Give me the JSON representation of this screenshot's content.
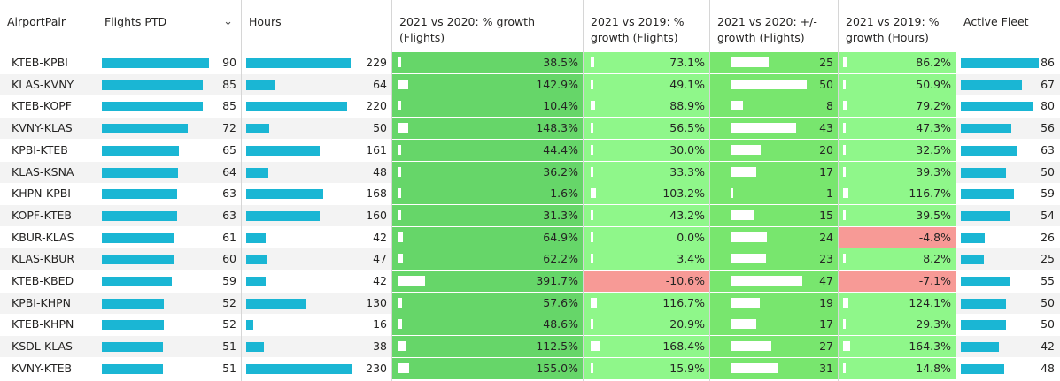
{
  "columns": [
    {
      "key": "pair",
      "label": "AirportPair"
    },
    {
      "key": "flights",
      "label": "Flights PTD",
      "sort_icon": "chevron-down-icon"
    },
    {
      "key": "hours",
      "label": "Hours"
    },
    {
      "key": "g2020f",
      "label": "2021 vs 2020: % growth (Flights)"
    },
    {
      "key": "g2019f",
      "label": "2021 vs 2019: % growth (Flights)"
    },
    {
      "key": "d2020f",
      "label": "2021 vs 2020: +/- growth (Flights)"
    },
    {
      "key": "g2019h",
      "label": "2021 vs 2019: % growth (Hours)"
    },
    {
      "key": "fleet",
      "label": "Active Fleet"
    }
  ],
  "colors": {
    "bar": "#1ab6d4",
    "green_dark": "#66d669",
    "green_light": "#8ff78a",
    "green_mid": "#78e66e",
    "red": "#f79a96"
  },
  "rows": [
    {
      "pair": "KTEB-KPBI",
      "flights": "90",
      "hours": "229",
      "g2020f": "38.5%",
      "g2019f": "73.1%",
      "d2020f": "25",
      "g2019h": "86.2%",
      "fleet": "86",
      "v": {
        "flights": 90,
        "hours": 229,
        "g2020f": 38.5,
        "g2019f": 73.1,
        "d2020f": 25,
        "g2019h": 86.2,
        "fleet": 86
      }
    },
    {
      "pair": "KLAS-KVNY",
      "flights": "85",
      "hours": "64",
      "g2020f": "142.9%",
      "g2019f": "49.1%",
      "d2020f": "50",
      "g2019h": "50.9%",
      "fleet": "67",
      "v": {
        "flights": 85,
        "hours": 64,
        "g2020f": 142.9,
        "g2019f": 49.1,
        "d2020f": 50,
        "g2019h": 50.9,
        "fleet": 67
      }
    },
    {
      "pair": "KTEB-KOPF",
      "flights": "85",
      "hours": "220",
      "g2020f": "10.4%",
      "g2019f": "88.9%",
      "d2020f": "8",
      "g2019h": "79.2%",
      "fleet": "80",
      "v": {
        "flights": 85,
        "hours": 220,
        "g2020f": 10.4,
        "g2019f": 88.9,
        "d2020f": 8,
        "g2019h": 79.2,
        "fleet": 80
      }
    },
    {
      "pair": "KVNY-KLAS",
      "flights": "72",
      "hours": "50",
      "g2020f": "148.3%",
      "g2019f": "56.5%",
      "d2020f": "43",
      "g2019h": "47.3%",
      "fleet": "56",
      "v": {
        "flights": 72,
        "hours": 50,
        "g2020f": 148.3,
        "g2019f": 56.5,
        "d2020f": 43,
        "g2019h": 47.3,
        "fleet": 56
      }
    },
    {
      "pair": "KPBI-KTEB",
      "flights": "65",
      "hours": "161",
      "g2020f": "44.4%",
      "g2019f": "30.0%",
      "d2020f": "20",
      "g2019h": "32.5%",
      "fleet": "63",
      "v": {
        "flights": 65,
        "hours": 161,
        "g2020f": 44.4,
        "g2019f": 30.0,
        "d2020f": 20,
        "g2019h": 32.5,
        "fleet": 63
      }
    },
    {
      "pair": "KLAS-KSNA",
      "flights": "64",
      "hours": "48",
      "g2020f": "36.2%",
      "g2019f": "33.3%",
      "d2020f": "17",
      "g2019h": "39.3%",
      "fleet": "50",
      "v": {
        "flights": 64,
        "hours": 48,
        "g2020f": 36.2,
        "g2019f": 33.3,
        "d2020f": 17,
        "g2019h": 39.3,
        "fleet": 50
      }
    },
    {
      "pair": "KHPN-KPBI",
      "flights": "63",
      "hours": "168",
      "g2020f": "1.6%",
      "g2019f": "103.2%",
      "d2020f": "1",
      "g2019h": "116.7%",
      "fleet": "59",
      "v": {
        "flights": 63,
        "hours": 168,
        "g2020f": 1.6,
        "g2019f": 103.2,
        "d2020f": 1,
        "g2019h": 116.7,
        "fleet": 59
      }
    },
    {
      "pair": "KOPF-KTEB",
      "flights": "63",
      "hours": "160",
      "g2020f": "31.3%",
      "g2019f": "43.2%",
      "d2020f": "15",
      "g2019h": "39.5%",
      "fleet": "54",
      "v": {
        "flights": 63,
        "hours": 160,
        "g2020f": 31.3,
        "g2019f": 43.2,
        "d2020f": 15,
        "g2019h": 39.5,
        "fleet": 54
      }
    },
    {
      "pair": "KBUR-KLAS",
      "flights": "61",
      "hours": "42",
      "g2020f": "64.9%",
      "g2019f": "0.0%",
      "d2020f": "24",
      "g2019h": "-4.8%",
      "fleet": "26",
      "v": {
        "flights": 61,
        "hours": 42,
        "g2020f": 64.9,
        "g2019f": 0.0,
        "d2020f": 24,
        "g2019h": -4.8,
        "fleet": 26
      }
    },
    {
      "pair": "KLAS-KBUR",
      "flights": "60",
      "hours": "47",
      "g2020f": "62.2%",
      "g2019f": "3.4%",
      "d2020f": "23",
      "g2019h": "8.2%",
      "fleet": "25",
      "v": {
        "flights": 60,
        "hours": 47,
        "g2020f": 62.2,
        "g2019f": 3.4,
        "d2020f": 23,
        "g2019h": 8.2,
        "fleet": 25
      }
    },
    {
      "pair": "KTEB-KBED",
      "flights": "59",
      "hours": "42",
      "g2020f": "391.7%",
      "g2019f": "-10.6%",
      "d2020f": "47",
      "g2019h": "-7.1%",
      "fleet": "55",
      "v": {
        "flights": 59,
        "hours": 42,
        "g2020f": 391.7,
        "g2019f": -10.6,
        "d2020f": 47,
        "g2019h": -7.1,
        "fleet": 55
      }
    },
    {
      "pair": "KPBI-KHPN",
      "flights": "52",
      "hours": "130",
      "g2020f": "57.6%",
      "g2019f": "116.7%",
      "d2020f": "19",
      "g2019h": "124.1%",
      "fleet": "50",
      "v": {
        "flights": 52,
        "hours": 130,
        "g2020f": 57.6,
        "g2019f": 116.7,
        "d2020f": 19,
        "g2019h": 124.1,
        "fleet": 50
      }
    },
    {
      "pair": "KTEB-KHPN",
      "flights": "52",
      "hours": "16",
      "g2020f": "48.6%",
      "g2019f": "20.9%",
      "d2020f": "17",
      "g2019h": "29.3%",
      "fleet": "50",
      "v": {
        "flights": 52,
        "hours": 16,
        "g2020f": 48.6,
        "g2019f": 20.9,
        "d2020f": 17,
        "g2019h": 29.3,
        "fleet": 50
      }
    },
    {
      "pair": "KSDL-KLAS",
      "flights": "51",
      "hours": "38",
      "g2020f": "112.5%",
      "g2019f": "168.4%",
      "d2020f": "27",
      "g2019h": "164.3%",
      "fleet": "42",
      "v": {
        "flights": 51,
        "hours": 38,
        "g2020f": 112.5,
        "g2019f": 168.4,
        "d2020f": 27,
        "g2019h": 164.3,
        "fleet": 42
      }
    },
    {
      "pair": "KVNY-KTEB",
      "flights": "51",
      "hours": "230",
      "g2020f": "155.0%",
      "g2019f": "15.9%",
      "d2020f": "31",
      "g2019h": "14.8%",
      "fleet": "48",
      "v": {
        "flights": 51,
        "hours": 230,
        "g2020f": 155.0,
        "g2019f": 15.9,
        "d2020f": 31,
        "g2019h": 14.8,
        "fleet": 48
      }
    }
  ]
}
